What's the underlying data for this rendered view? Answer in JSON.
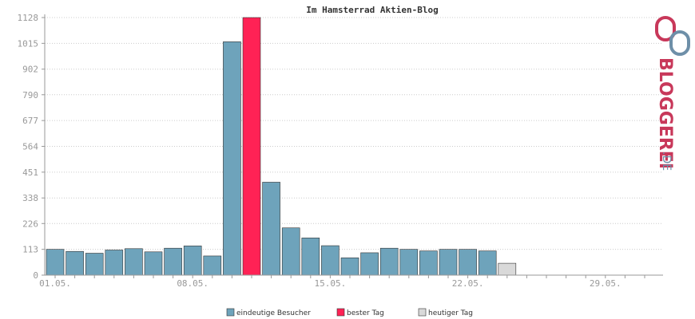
{
  "chart_data": {
    "type": "bar",
    "title": "Im Hamsterrad Aktien-Blog",
    "xlabel": "",
    "ylabel": "",
    "ylim": [
      0,
      1128
    ],
    "yticks": [
      0,
      113,
      226,
      338,
      451,
      564,
      677,
      790,
      902,
      1015,
      1128
    ],
    "xtick_labels": [
      "01.05.",
      "08.05.",
      "15.05.",
      "22.05.",
      "29.05."
    ],
    "xtick_day_index": [
      0,
      7,
      14,
      21,
      28
    ],
    "days": 31,
    "grid": true,
    "legend_position": "bottom",
    "series": [
      {
        "name": "eindeutige Besucher",
        "color": "#6ea3bb",
        "values": [
          113,
          104,
          96,
          110,
          116,
          102,
          118,
          128,
          84,
          1022,
          null,
          407,
          207,
          163,
          129,
          76,
          98,
          118,
          113,
          106,
          113,
          113,
          106,
          null,
          null,
          null,
          null,
          null,
          null,
          null,
          null
        ]
      },
      {
        "name": "bester Tag",
        "color": "#ff2255",
        "values": [
          null,
          null,
          null,
          null,
          null,
          null,
          null,
          null,
          null,
          null,
          1128,
          null,
          null,
          null,
          null,
          null,
          null,
          null,
          null,
          null,
          null,
          null,
          null,
          null,
          null,
          null,
          null,
          null,
          null,
          null,
          null
        ]
      },
      {
        "name": "heutiger Tag",
        "color": "#d9d9d9",
        "values": [
          null,
          null,
          null,
          null,
          null,
          null,
          null,
          null,
          null,
          null,
          null,
          null,
          null,
          null,
          null,
          null,
          null,
          null,
          null,
          null,
          null,
          null,
          null,
          52,
          null,
          null,
          null,
          null,
          null,
          null,
          null
        ]
      }
    ]
  },
  "logo": {
    "main_text": "BLOGGEREI",
    "suffix_text": ".DE",
    "colors": [
      "#c8385a",
      "#6e8fa8"
    ]
  }
}
